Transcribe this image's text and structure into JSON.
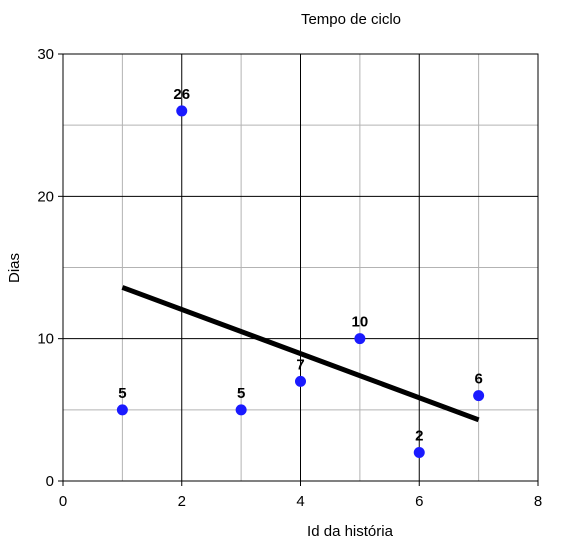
{
  "chart_data": {
    "type": "scatter",
    "title": "Tempo de ciclo",
    "xlabel": "Id da história",
    "ylabel": "Dias",
    "xlim": [
      0,
      8
    ],
    "ylim": [
      0,
      30
    ],
    "x_ticks": [
      "0",
      "2",
      "4",
      "6",
      "8"
    ],
    "y_ticks": [
      "0",
      "10",
      "20",
      "30"
    ],
    "grid": true,
    "legend": "none",
    "series": [
      {
        "x": [
          1,
          2,
          3,
          4,
          5,
          6,
          7
        ],
        "y": [
          5,
          26,
          5,
          7,
          10,
          2,
          6
        ],
        "labels": [
          "5",
          "26",
          "5",
          "7",
          "10",
          "2",
          "6"
        ],
        "color": "#1a1aff"
      }
    ],
    "trendline": {
      "x": [
        1,
        7
      ],
      "y": [
        13.6,
        4.3
      ],
      "color": "#000000"
    },
    "colors": {
      "major_grid": "#000000",
      "minor_grid": "#b3b3b3"
    }
  }
}
